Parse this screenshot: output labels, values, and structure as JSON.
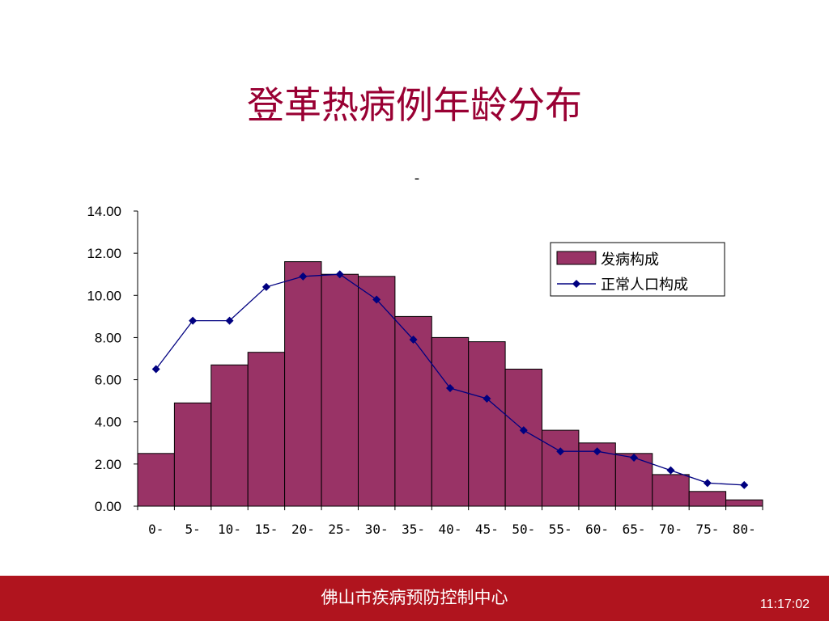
{
  "slide": {
    "title": "登革热病例年龄分布",
    "subtitle": "-",
    "footer_org": "佛山市疾病预防控制中心",
    "footer_time": "11:17:02"
  },
  "colors": {
    "title": "#990033",
    "bar_fill": "#993366",
    "line": "#000080",
    "footer_bg": "#b0141e"
  },
  "chart_data": {
    "type": "bar",
    "categories": [
      "0-",
      "5-",
      "10-",
      "15-",
      "20-",
      "25-",
      "30-",
      "35-",
      "40-",
      "45-",
      "50-",
      "55-",
      "60-",
      "65-",
      "70-",
      "75-",
      "80-"
    ],
    "ylim": [
      0,
      14
    ],
    "yticks": [
      "0.00",
      "2.00",
      "4.00",
      "6.00",
      "8.00",
      "10.00",
      "12.00",
      "14.00"
    ],
    "grid": false,
    "legend_position": "top-right",
    "series": [
      {
        "name": "发病构成",
        "type": "bar",
        "values": [
          2.5,
          4.9,
          6.7,
          7.3,
          11.6,
          11.0,
          10.9,
          9.0,
          8.0,
          7.8,
          6.5,
          3.6,
          3.0,
          2.5,
          1.5,
          0.7,
          0.3
        ]
      },
      {
        "name": "正常人口构成",
        "type": "line",
        "values": [
          6.5,
          8.8,
          8.8,
          10.4,
          10.9,
          11.0,
          9.8,
          7.9,
          5.6,
          5.1,
          3.6,
          2.6,
          2.6,
          2.3,
          1.7,
          1.1,
          1.0
        ]
      }
    ]
  }
}
